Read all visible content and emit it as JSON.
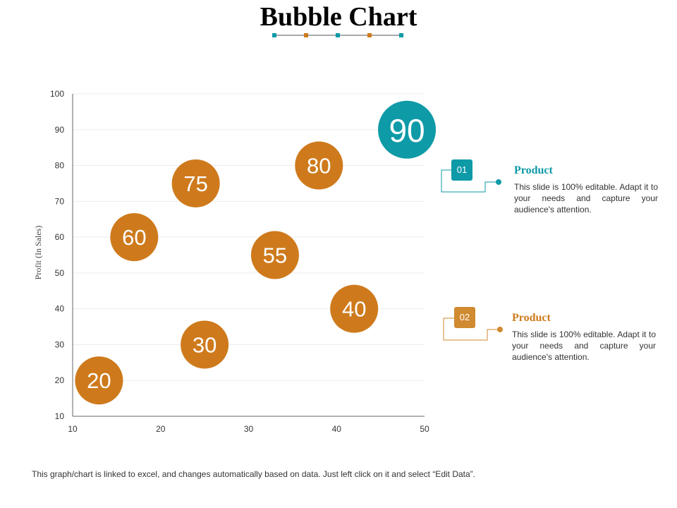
{
  "title": "Bubble Chart",
  "colors": {
    "teal": "#0E9AA7",
    "orange": "#CE7A1C",
    "teal_dark": "#0A8D99",
    "orange_light": "#D08A30",
    "axis": "#666666",
    "grid": "#EDEDED"
  },
  "chart_data": {
    "type": "scatter",
    "subtype": "bubble",
    "title": "",
    "xlabel": "",
    "ylabel": "Profit (In Sales)",
    "xlim": [
      10,
      50
    ],
    "ylim": [
      10,
      100
    ],
    "xticks": [
      "10",
      "20",
      "30",
      "40",
      "50"
    ],
    "yticks": [
      "10",
      "20",
      "30",
      "40",
      "50",
      "60",
      "70",
      "80",
      "90",
      "100"
    ],
    "grid": true,
    "legend": "none",
    "points": [
      {
        "x": 13,
        "y": 20,
        "label": "20",
        "color": "#CE7A1C"
      },
      {
        "x": 17,
        "y": 60,
        "label": "60",
        "color": "#CE7A1C"
      },
      {
        "x": 24,
        "y": 75,
        "label": "75",
        "color": "#CE7A1C"
      },
      {
        "x": 25,
        "y": 30,
        "label": "30",
        "color": "#CE7A1C"
      },
      {
        "x": 33,
        "y": 55,
        "label": "55",
        "color": "#CE7A1C"
      },
      {
        "x": 38,
        "y": 80,
        "label": "80",
        "color": "#CE7A1C"
      },
      {
        "x": 42,
        "y": 40,
        "label": "40",
        "color": "#CE7A1C"
      },
      {
        "x": 48,
        "y": 90,
        "label": "90",
        "color": "#0E9AA7"
      }
    ]
  },
  "callouts": [
    {
      "number": "01",
      "heading": "Product",
      "text": "This slide is 100% editable. Adapt it to your needs and capture your audience's attention.",
      "color": "#0E9AA7"
    },
    {
      "number": "02",
      "heading": "Product",
      "text": "This slide is 100% editable. Adapt it to your needs and capture your audience's attention.",
      "color": "#D08A30"
    }
  ],
  "footer": "This graph/chart is linked to excel, and changes automatically based on data. Just left click on it and select “Edit Data”."
}
